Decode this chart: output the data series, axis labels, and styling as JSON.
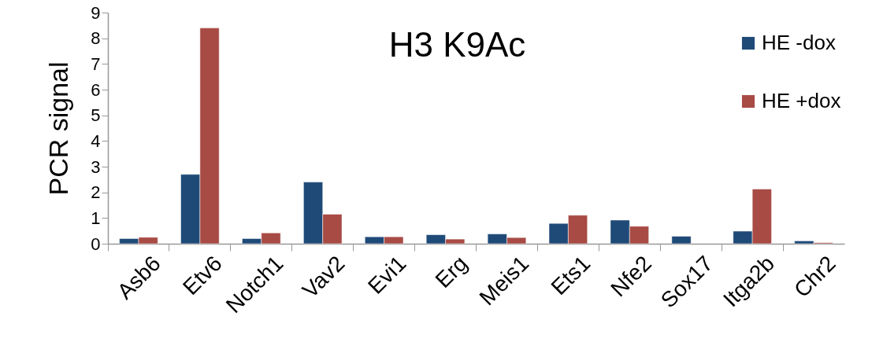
{
  "chart_data": {
    "type": "bar",
    "title": "H3 K9Ac",
    "ylabel": "PCR signal",
    "categories": [
      "Asb6",
      "Etv6",
      "Notch1",
      "Vav2",
      "Evi1",
      "Erg",
      "Meis1",
      "Ets1",
      "Nfe2",
      "Sox17",
      "Itga2b",
      "Chr2"
    ],
    "series": [
      {
        "name": "HE -dox",
        "color": "#1f4a78",
        "values": [
          0.2,
          2.7,
          0.2,
          2.4,
          0.27,
          0.35,
          0.38,
          0.79,
          0.92,
          0.29,
          0.49,
          0.11
        ]
      },
      {
        "name": "HE +dox",
        "color": "#a84b45",
        "values": [
          0.25,
          8.4,
          0.42,
          1.15,
          0.27,
          0.18,
          0.24,
          1.11,
          0.68,
          null,
          2.13,
          0.04
        ]
      }
    ],
    "ylim": [
      0,
      9
    ],
    "yticks": [
      0,
      1,
      2,
      3,
      4,
      5,
      6,
      7,
      8,
      9
    ],
    "grid": false,
    "legend": "top right"
  }
}
